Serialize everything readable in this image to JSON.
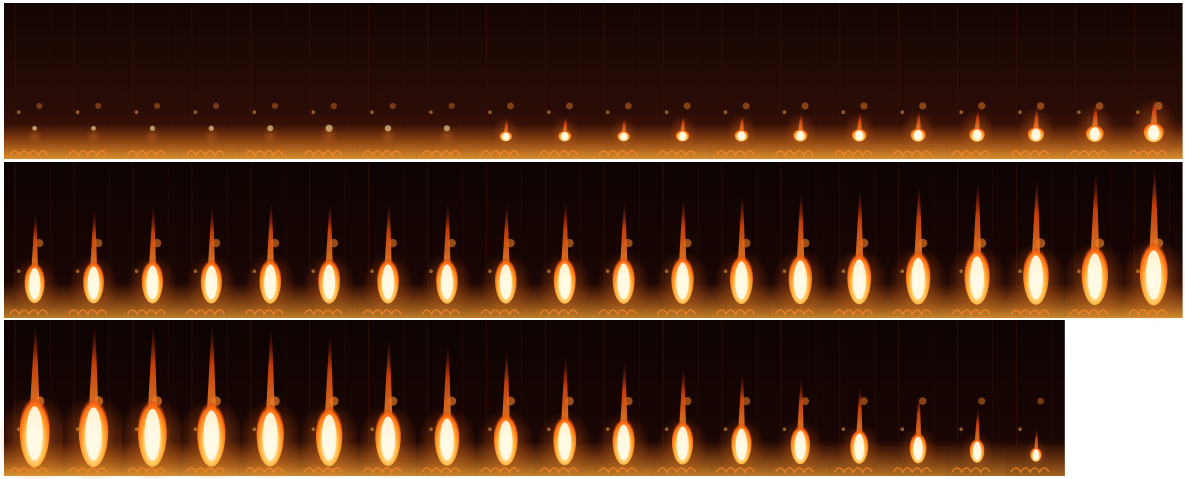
{
  "image": {
    "subject": "flame-sequence-montage",
    "rows": 3,
    "columns": 20,
    "frames_shown": 58,
    "empty_slots": 2,
    "colors": {
      "background": "#ffffff",
      "frame_bg_dark": "#120402",
      "frame_bg_row1": "#2a0c06",
      "flame_core": "#fffbe8",
      "flame_mid": "#ffd36a",
      "flame_outer": "#ff7a18",
      "flame_edge": "#c2300a",
      "ember_glow": "#ff9a2e",
      "coil_glow": "#ff6a1a"
    },
    "frames": [
      {
        "intensity": 0.02
      },
      {
        "intensity": 0.02
      },
      {
        "intensity": 0.03
      },
      {
        "intensity": 0.03
      },
      {
        "intensity": 0.05
      },
      {
        "intensity": 0.08
      },
      {
        "intensity": 0.06
      },
      {
        "intensity": 0.05
      },
      {
        "intensity": 0.2
      },
      {
        "intensity": 0.22
      },
      {
        "intensity": 0.2
      },
      {
        "intensity": 0.24
      },
      {
        "intensity": 0.26
      },
      {
        "intensity": 0.28
      },
      {
        "intensity": 0.3
      },
      {
        "intensity": 0.32
      },
      {
        "intensity": 0.34
      },
      {
        "intensity": 0.38
      },
      {
        "intensity": 0.44
      },
      {
        "intensity": 0.55
      },
      {
        "intensity": 0.55
      },
      {
        "intensity": 0.58
      },
      {
        "intensity": 0.6
      },
      {
        "intensity": 0.6
      },
      {
        "intensity": 0.62
      },
      {
        "intensity": 0.62
      },
      {
        "intensity": 0.62
      },
      {
        "intensity": 0.62
      },
      {
        "intensity": 0.62
      },
      {
        "intensity": 0.64
      },
      {
        "intensity": 0.64
      },
      {
        "intensity": 0.66
      },
      {
        "intensity": 0.68
      },
      {
        "intensity": 0.7
      },
      {
        "intensity": 0.72
      },
      {
        "intensity": 0.75
      },
      {
        "intensity": 0.78
      },
      {
        "intensity": 0.8
      },
      {
        "intensity": 0.84
      },
      {
        "intensity": 0.9
      },
      {
        "intensity": 1.0
      },
      {
        "intensity": 0.98
      },
      {
        "intensity": 0.95
      },
      {
        "intensity": 0.92
      },
      {
        "intensity": 0.88
      },
      {
        "intensity": 0.84
      },
      {
        "intensity": 0.8
      },
      {
        "intensity": 0.76
      },
      {
        "intensity": 0.72
      },
      {
        "intensity": 0.68
      },
      {
        "intensity": 0.64
      },
      {
        "intensity": 0.6
      },
      {
        "intensity": 0.56
      },
      {
        "intensity": 0.52
      },
      {
        "intensity": 0.46
      },
      {
        "intensity": 0.4
      },
      {
        "intensity": 0.3
      },
      {
        "intensity": 0.15
      }
    ]
  }
}
